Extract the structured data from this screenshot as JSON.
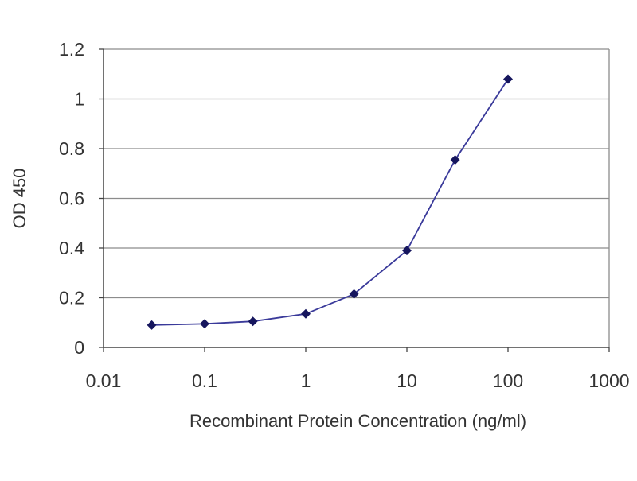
{
  "chart_data": {
    "type": "line",
    "title": "",
    "xlabel": "Recombinant Protein Concentration (ng/ml)",
    "ylabel": "OD 450",
    "xscale": "log",
    "xlim": [
      0.01,
      1000
    ],
    "ylim": [
      0,
      1.2
    ],
    "xticks": [
      0.01,
      0.1,
      1,
      10,
      100,
      1000
    ],
    "xtick_labels": [
      "0.01",
      "0.1",
      "1",
      "10",
      "100",
      "1000"
    ],
    "yticks": [
      0,
      0.2,
      0.4,
      0.6,
      0.8,
      1,
      1.2
    ],
    "ytick_labels": [
      "0",
      "0.2",
      "0.4",
      "0.6",
      "0.8",
      "1",
      "1.2"
    ],
    "grid": "horizontal",
    "legend": "none",
    "series": [
      {
        "color": "#3a3a9a",
        "marker": "diamond",
        "marker_color": "#16165e",
        "x": [
          0.03,
          0.1,
          0.3,
          1,
          3,
          10,
          30,
          100
        ],
        "y": [
          0.09,
          0.095,
          0.105,
          0.135,
          0.215,
          0.39,
          0.755,
          1.08
        ]
      }
    ]
  }
}
